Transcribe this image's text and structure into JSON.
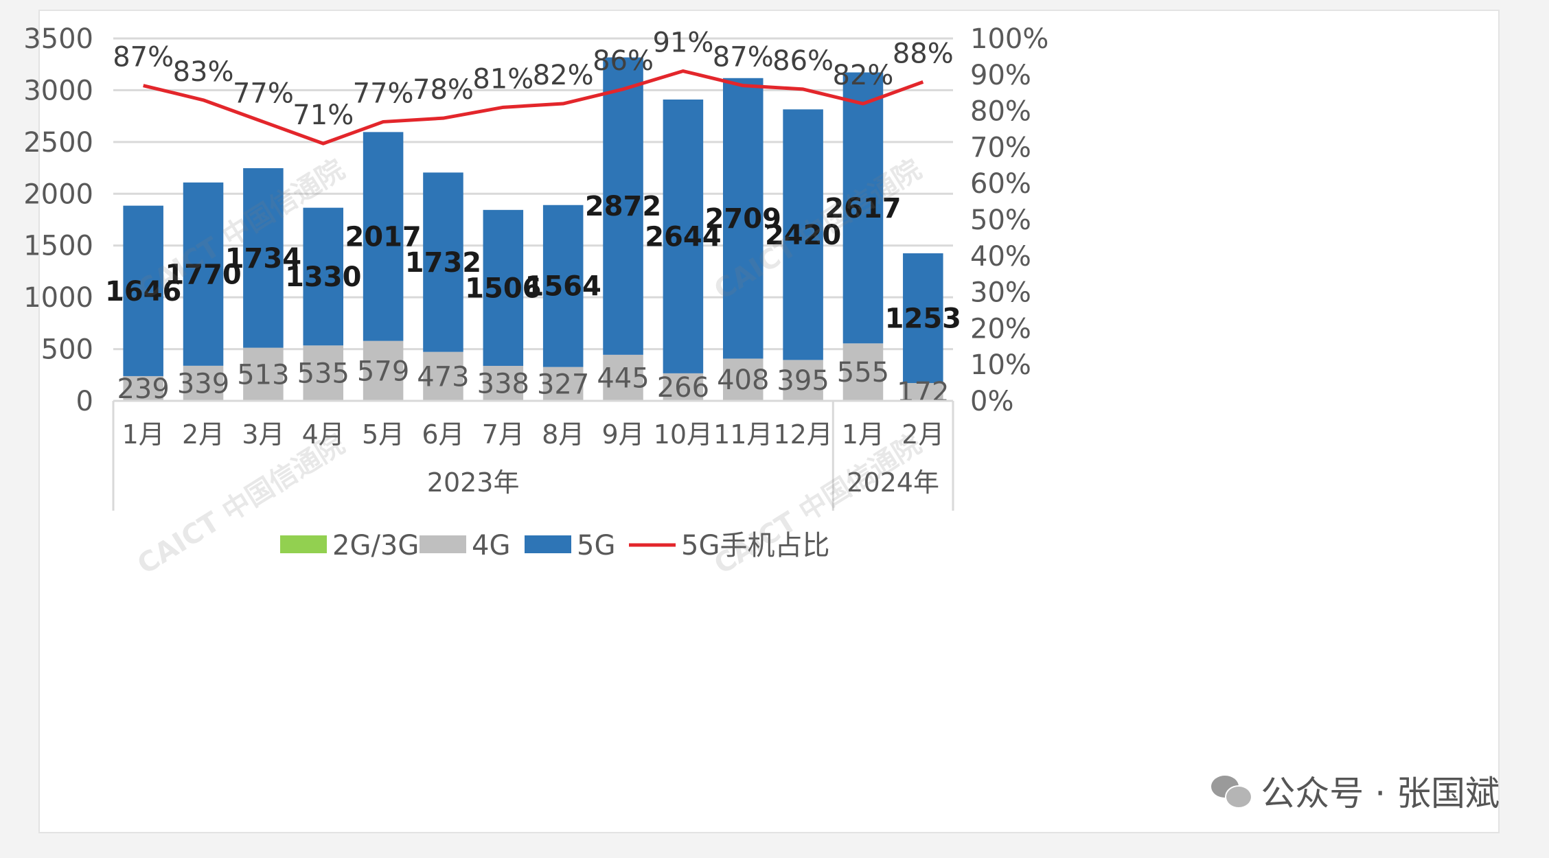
{
  "chart_data": {
    "type": "bar",
    "stacked": true,
    "categories": [
      "1月",
      "2月",
      "3月",
      "4月",
      "5月",
      "6月",
      "7月",
      "8月",
      "9月",
      "10月",
      "11月",
      "12月",
      "1月",
      "2月"
    ],
    "groups": [
      {
        "label": "2023年",
        "count": 12
      },
      {
        "label": "2024年",
        "count": 2
      }
    ],
    "series": [
      {
        "name": "2G/3G",
        "color": "#92d050",
        "values": [
          0,
          0,
          0,
          0,
          0,
          0,
          0,
          0,
          0,
          0,
          0,
          0,
          0,
          0
        ]
      },
      {
        "name": "4G",
        "color": "#bfbfbf",
        "values": [
          239,
          339,
          513,
          535,
          579,
          473,
          338,
          327,
          445,
          266,
          408,
          395,
          555,
          172
        ]
      },
      {
        "name": "5G",
        "color": "#2e75b6",
        "values": [
          1646,
          1770,
          1734,
          1330,
          2017,
          1732,
          1506,
          1564,
          2872,
          2644,
          2709,
          2420,
          2617,
          1253
        ]
      }
    ],
    "line": {
      "name": "5G手机占比",
      "color": "#e3262b",
      "values": [
        87,
        83,
        77,
        71,
        77,
        78,
        81,
        82,
        86,
        91,
        87,
        86,
        82,
        88
      ]
    },
    "pct_labels": [
      "87%",
      "83%",
      "77%",
      "71%",
      "77%",
      "78%",
      "81%",
      "82%",
      "86%",
      "91%",
      "87%",
      "86%",
      "82%",
      "88%"
    ],
    "y_left": {
      "min": 0,
      "max": 3500,
      "ticks": [
        "0",
        "500",
        "1000",
        "1500",
        "2000",
        "2500",
        "3000",
        "3500"
      ]
    },
    "y_right": {
      "min": 0,
      "max": 100,
      "ticks": [
        "0%",
        "10%",
        "20%",
        "30%",
        "40%",
        "50%",
        "60%",
        "70%",
        "80%",
        "90%",
        "100%"
      ]
    },
    "grid": true,
    "legend_position": "bottom"
  },
  "watermarks": [
    "CAICT 中国信通院",
    "CAICT 中国信通院",
    "CAICT 中国信通院",
    "CAICT 中国信通院"
  ],
  "source": {
    "icon": "wechat-icon",
    "text": "公众号 · 张国斌"
  }
}
